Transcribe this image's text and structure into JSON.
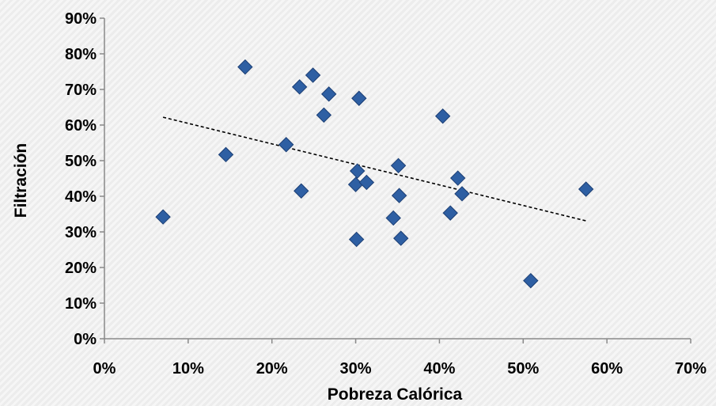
{
  "chart_data": {
    "type": "scatter",
    "xlabel": "Pobreza Calórica",
    "ylabel": "Filtración",
    "xlim": [
      0,
      0.7
    ],
    "ylim": [
      0,
      0.9
    ],
    "x_ticks": [
      0,
      0.1,
      0.2,
      0.3,
      0.4,
      0.5,
      0.6,
      0.7
    ],
    "y_ticks": [
      0,
      0.1,
      0.2,
      0.3,
      0.4,
      0.5,
      0.6,
      0.7,
      0.8,
      0.9
    ],
    "x_tick_labels": [
      "0%",
      "10%",
      "20%",
      "30%",
      "40%",
      "50%",
      "60%",
      "70%"
    ],
    "y_tick_labels": [
      "0%",
      "10%",
      "20%",
      "30%",
      "40%",
      "50%",
      "60%",
      "70%",
      "80%",
      "90%"
    ],
    "grid": false,
    "marker": "diamond",
    "marker_color": "#2e5fa3",
    "trendline_color": "#000000",
    "points": [
      {
        "x": 0.07,
        "y": 0.342
      },
      {
        "x": 0.145,
        "y": 0.517
      },
      {
        "x": 0.168,
        "y": 0.763
      },
      {
        "x": 0.217,
        "y": 0.545
      },
      {
        "x": 0.233,
        "y": 0.707
      },
      {
        "x": 0.235,
        "y": 0.415
      },
      {
        "x": 0.249,
        "y": 0.74
      },
      {
        "x": 0.262,
        "y": 0.628
      },
      {
        "x": 0.268,
        "y": 0.687
      },
      {
        "x": 0.3,
        "y": 0.433
      },
      {
        "x": 0.302,
        "y": 0.471
      },
      {
        "x": 0.301,
        "y": 0.279
      },
      {
        "x": 0.304,
        "y": 0.675
      },
      {
        "x": 0.313,
        "y": 0.439
      },
      {
        "x": 0.345,
        "y": 0.339
      },
      {
        "x": 0.351,
        "y": 0.486
      },
      {
        "x": 0.352,
        "y": 0.402
      },
      {
        "x": 0.354,
        "y": 0.282
      },
      {
        "x": 0.404,
        "y": 0.625
      },
      {
        "x": 0.413,
        "y": 0.353
      },
      {
        "x": 0.422,
        "y": 0.451
      },
      {
        "x": 0.427,
        "y": 0.407
      },
      {
        "x": 0.509,
        "y": 0.163
      },
      {
        "x": 0.575,
        "y": 0.42
      }
    ],
    "trendline": {
      "type": "linear",
      "x": [
        0.07,
        0.575
      ],
      "y": [
        0.622,
        0.331
      ]
    }
  }
}
